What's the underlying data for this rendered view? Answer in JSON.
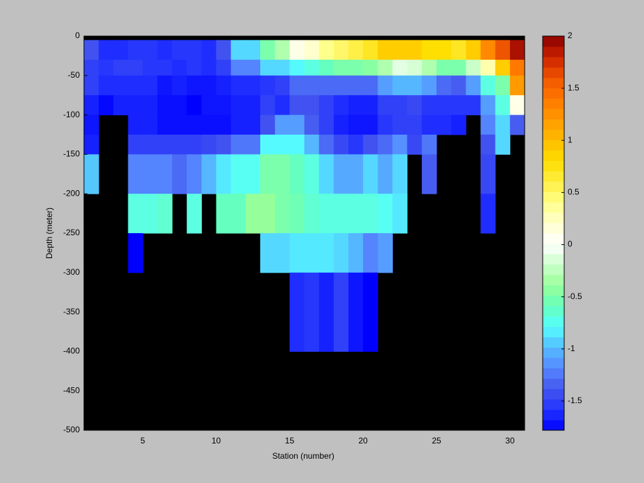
{
  "chart_data": {
    "type": "heatmap",
    "xlabel": "Station (number)",
    "ylabel": "Depth (meter)",
    "x_edges": [
      1,
      2,
      3,
      4,
      5,
      6,
      7,
      8,
      9,
      10,
      11,
      12,
      13,
      14,
      15,
      16,
      17,
      18,
      19,
      20,
      21,
      22,
      23,
      24,
      25,
      26,
      27,
      28,
      29,
      30,
      31
    ],
    "y_edges": [
      0,
      -5,
      -30,
      -50,
      -75,
      -100,
      -125,
      -150,
      -200,
      -250,
      -300,
      -400,
      -500
    ],
    "values": [
      [
        null,
        null,
        null,
        null,
        null,
        null,
        null,
        null,
        null,
        null,
        null,
        null,
        null,
        null,
        null,
        null,
        null,
        null,
        null,
        null,
        null,
        null,
        null,
        null,
        null,
        null,
        null,
        null,
        null,
        null
      ],
      [
        -1.4,
        -1.6,
        -1.6,
        -1.55,
        -1.55,
        -1.6,
        -1.55,
        -1.55,
        -1.6,
        -1.4,
        -0.9,
        -0.9,
        -0.5,
        -0.3,
        0.1,
        0.2,
        0.4,
        0.5,
        0.6,
        0.7,
        0.9,
        0.9,
        0.9,
        0.8,
        0.8,
        0.7,
        0.9,
        1.3,
        1.6,
        1.9
      ],
      [
        -1.5,
        -1.55,
        -1.5,
        -1.5,
        -1.55,
        -1.55,
        -1.6,
        -1.55,
        -1.6,
        -1.5,
        -1.2,
        -1.2,
        -0.9,
        -0.9,
        -0.8,
        -0.7,
        -0.6,
        -0.5,
        -0.5,
        -0.45,
        -0.3,
        -0.1,
        -0.15,
        -0.3,
        -0.5,
        -0.5,
        -0.2,
        0.3,
        0.9,
        1.4
      ],
      [
        -1.5,
        -1.6,
        -1.6,
        -1.6,
        -1.6,
        -1.7,
        -1.65,
        -1.7,
        -1.7,
        -1.65,
        -1.6,
        -1.6,
        -1.55,
        -1.5,
        -1.3,
        -1.3,
        -1.3,
        -1.3,
        -1.3,
        -1.3,
        -1.1,
        -1.0,
        -1.0,
        -1.1,
        -1.3,
        -1.35,
        -1.1,
        -0.7,
        -0.5,
        1.2
      ],
      [
        -1.65,
        -1.75,
        -1.65,
        -1.65,
        -1.65,
        -1.72,
        -1.72,
        -1.78,
        -1.7,
        -1.7,
        -1.65,
        -1.65,
        -1.5,
        -1.6,
        -1.4,
        -1.4,
        -1.5,
        -1.6,
        -1.65,
        -1.65,
        -1.5,
        -1.5,
        -1.45,
        -1.55,
        -1.55,
        -1.55,
        -1.55,
        -1.1,
        -0.7,
        0.1
      ],
      [
        -1.7,
        null,
        null,
        -1.65,
        -1.65,
        -1.72,
        -1.72,
        -1.72,
        -1.72,
        -1.72,
        -1.65,
        -1.65,
        -1.4,
        -1.1,
        -1.1,
        -1.35,
        -1.5,
        -1.65,
        -1.7,
        -1.7,
        -1.55,
        -1.5,
        -1.5,
        -1.6,
        -1.6,
        -1.65,
        null,
        -1.2,
        -0.9,
        -1.35
      ],
      [
        -1.65,
        null,
        null,
        -1.5,
        -1.5,
        -1.5,
        -1.5,
        -1.5,
        -1.45,
        -1.4,
        -1.25,
        -1.25,
        -0.8,
        -0.8,
        -0.8,
        -1.0,
        -1.3,
        -1.45,
        -1.55,
        -1.4,
        -1.3,
        -1.15,
        -1.45,
        -1.25,
        null,
        null,
        null,
        -1.4,
        -0.9,
        null
      ],
      [
        -0.95,
        null,
        null,
        -1.2,
        -1.2,
        -1.2,
        -1.3,
        -1.2,
        -1.0,
        -0.85,
        -0.75,
        -0.75,
        -0.5,
        -0.5,
        -0.6,
        -0.7,
        -0.9,
        -1.05,
        -1.05,
        -0.9,
        -1.05,
        -0.9,
        null,
        -1.35,
        null,
        null,
        null,
        -1.45,
        null,
        null
      ],
      [
        null,
        null,
        null,
        -0.7,
        -0.7,
        -0.65,
        null,
        -0.7,
        null,
        -0.6,
        -0.6,
        -0.4,
        -0.4,
        -0.5,
        -0.55,
        -0.65,
        -0.7,
        -0.7,
        -0.7,
        -0.7,
        -0.75,
        -0.85,
        null,
        null,
        null,
        null,
        null,
        -1.6,
        null,
        null
      ],
      [
        null,
        null,
        null,
        -1.78,
        null,
        null,
        null,
        null,
        null,
        null,
        null,
        null,
        -0.9,
        -0.9,
        -0.85,
        -0.85,
        -0.85,
        -0.9,
        -1.0,
        -1.2,
        -1.1,
        null,
        null,
        null,
        null,
        null,
        null,
        null,
        null,
        null
      ],
      [
        null,
        null,
        null,
        null,
        null,
        null,
        null,
        null,
        null,
        null,
        null,
        null,
        null,
        null,
        -1.6,
        -1.55,
        -1.65,
        -1.5,
        -1.7,
        -1.78,
        null,
        null,
        null,
        null,
        null,
        null,
        null,
        null,
        null,
        null
      ],
      [
        null,
        null,
        null,
        null,
        null,
        null,
        null,
        null,
        null,
        null,
        null,
        null,
        null,
        null,
        null,
        null,
        null,
        null,
        null,
        null,
        null,
        null,
        null,
        null,
        null,
        null,
        null,
        null,
        null,
        null
      ]
    ],
    "xlim": [
      1,
      31
    ],
    "xticks": [
      5,
      10,
      15,
      20,
      25,
      30
    ],
    "ylim": [
      -500,
      0
    ],
    "yticks": [
      0,
      -50,
      -100,
      -150,
      -200,
      -250,
      -300,
      -350,
      -400,
      -450,
      -500
    ],
    "clim": [
      -1.78,
      2
    ],
    "colorbar_ticks": [
      -1.5,
      -1,
      -0.5,
      0,
      0.5,
      1,
      1.5,
      2
    ],
    "colormap": [
      "#0000ff",
      "#2233ff",
      "#4455ee",
      "#5588ff",
      "#55bbff",
      "#55ffff",
      "#66ffbb",
      "#99ff99",
      "#ccffcc",
      "#ffffff",
      "#ffffcc",
      "#ffff88",
      "#ffee44",
      "#ffdd00",
      "#ffbb00",
      "#ff9900",
      "#ff7700",
      "#ee5500",
      "#cc2200",
      "#880000"
    ],
    "nodata_color": "#000000"
  }
}
